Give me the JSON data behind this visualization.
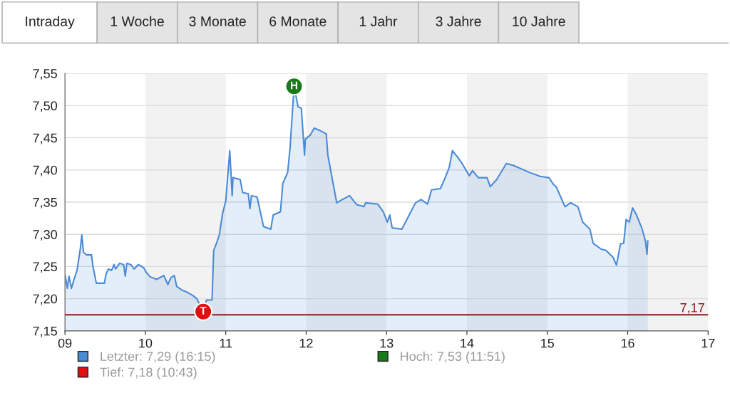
{
  "chart_data": {
    "type": "area",
    "xlim": [
      9,
      17
    ],
    "xticks": [
      {
        "value": 9,
        "label": "09"
      },
      {
        "value": 10,
        "label": "10"
      },
      {
        "value": 11,
        "label": "11"
      },
      {
        "value": 12,
        "label": "12"
      },
      {
        "value": 13,
        "label": "13"
      },
      {
        "value": 14,
        "label": "14"
      },
      {
        "value": 15,
        "label": "15"
      },
      {
        "value": 16,
        "label": "16"
      },
      {
        "value": 17,
        "label": "17"
      }
    ],
    "ylim": [
      7.15,
      7.55
    ],
    "yticks": [
      {
        "value": 7.15,
        "label": "7,15"
      },
      {
        "value": 7.2,
        "label": "7,20"
      },
      {
        "value": 7.25,
        "label": "7,25"
      },
      {
        "value": 7.3,
        "label": "7,30"
      },
      {
        "value": 7.35,
        "label": "7,35"
      },
      {
        "value": 7.4,
        "label": "7,40"
      },
      {
        "value": 7.45,
        "label": "7,45"
      },
      {
        "value": 7.5,
        "label": "7,50"
      },
      {
        "value": 7.55,
        "label": "7,55"
      }
    ],
    "grid": "y",
    "legend": "bottom",
    "series": [
      {
        "name": "Letzter: 7,29 (16:15)",
        "color": "#4a8ad6",
        "x": [
          9.0,
          9.03,
          9.05,
          9.08,
          9.12,
          9.15,
          9.19,
          9.21,
          9.23,
          9.27,
          9.33,
          9.35,
          9.39,
          9.49,
          9.51,
          9.54,
          9.58,
          9.61,
          9.63,
          9.68,
          9.73,
          9.75,
          9.77,
          9.82,
          9.86,
          9.91,
          9.98,
          10.01,
          10.06,
          10.14,
          10.23,
          10.28,
          10.32,
          10.36,
          10.39,
          10.46,
          10.52,
          10.59,
          10.64,
          10.72,
          10.76,
          10.83,
          10.85,
          10.89,
          10.92,
          10.96,
          11.0,
          11.05,
          11.08,
          11.09,
          11.18,
          11.21,
          11.28,
          11.3,
          11.32,
          11.39,
          11.47,
          11.56,
          11.59,
          11.68,
          11.71,
          11.77,
          11.8,
          11.85,
          11.9,
          11.94,
          11.98,
          11.99,
          12.05,
          12.1,
          12.16,
          12.25,
          12.27,
          12.38,
          12.45,
          12.54,
          12.63,
          12.72,
          12.74,
          12.89,
          12.96,
          13.01,
          13.04,
          13.07,
          13.19,
          13.27,
          13.36,
          13.43,
          13.51,
          13.56,
          13.67,
          13.72,
          13.78,
          13.82,
          13.89,
          13.94,
          14.03,
          14.07,
          14.14,
          14.25,
          14.29,
          14.37,
          14.49,
          14.58,
          14.69,
          14.78,
          14.91,
          15.02,
          15.08,
          15.11,
          15.22,
          15.29,
          15.38,
          15.44,
          15.53,
          15.57,
          15.67,
          15.73,
          15.82,
          15.86,
          15.91,
          15.95,
          15.98,
          16.02,
          16.06,
          16.11,
          16.18,
          16.22,
          16.24,
          16.25
        ],
        "values": [
          7.238,
          7.216,
          7.235,
          7.216,
          7.233,
          7.244,
          7.277,
          7.299,
          7.272,
          7.268,
          7.268,
          7.249,
          7.224,
          7.224,
          7.238,
          7.246,
          7.244,
          7.253,
          7.246,
          7.255,
          7.253,
          7.235,
          7.255,
          7.253,
          7.246,
          7.253,
          7.248,
          7.241,
          7.234,
          7.23,
          7.236,
          7.222,
          7.233,
          7.236,
          7.219,
          7.213,
          7.21,
          7.205,
          7.2,
          7.18,
          7.198,
          7.198,
          7.275,
          7.288,
          7.299,
          7.332,
          7.352,
          7.43,
          7.36,
          7.388,
          7.385,
          7.365,
          7.363,
          7.34,
          7.36,
          7.358,
          7.312,
          7.308,
          7.33,
          7.335,
          7.379,
          7.396,
          7.434,
          7.53,
          7.498,
          7.496,
          7.423,
          7.448,
          7.454,
          7.465,
          7.462,
          7.456,
          7.423,
          7.349,
          7.354,
          7.36,
          7.346,
          7.343,
          7.349,
          7.347,
          7.335,
          7.319,
          7.33,
          7.31,
          7.308,
          7.327,
          7.349,
          7.354,
          7.347,
          7.369,
          7.371,
          7.385,
          7.404,
          7.43,
          7.419,
          7.41,
          7.391,
          7.399,
          7.388,
          7.388,
          7.374,
          7.385,
          7.41,
          7.407,
          7.401,
          7.396,
          7.39,
          7.388,
          7.377,
          7.374,
          7.343,
          7.349,
          7.343,
          7.319,
          7.308,
          7.286,
          7.277,
          7.275,
          7.264,
          7.252,
          7.285,
          7.286,
          7.323,
          7.319,
          7.341,
          7.33,
          7.308,
          7.29,
          7.269,
          7.29
        ]
      },
      {
        "name": "Tief: 7,18 (10:43)",
        "color": "#e01010",
        "type": "scatter",
        "marker": "circle",
        "x": [
          10.72
        ],
        "values": [
          7.18
        ]
      },
      {
        "name": "Hoch: 7,53 (11:51)",
        "color": "#1a7a1a",
        "type": "scatter",
        "marker": "circle",
        "x": [
          11.85
        ],
        "values": [
          7.53
        ]
      }
    ],
    "ref_lines": [
      {
        "axis": "y",
        "value": 7.175,
        "label": "7,17",
        "color": "#8b1a1a"
      }
    ],
    "bands": [
      {
        "axis": "x",
        "from": 10,
        "to": 11,
        "color": "#f2f2f2"
      },
      {
        "axis": "x",
        "from": 12,
        "to": 13,
        "color": "#f2f2f2"
      },
      {
        "axis": "x",
        "from": 14,
        "to": 15,
        "color": "#f2f2f2"
      },
      {
        "axis": "x",
        "from": 16,
        "to": 17,
        "color": "#f2f2f2"
      }
    ],
    "annotations": [
      "Intraday",
      "1 Woche",
      "3 Monate",
      "6 Monate",
      "1 Jahr",
      "3 Jahre",
      "10 Jahre",
      {
        "text": "T",
        "x": 10.72,
        "y": 7.18
      },
      {
        "text": "H",
        "x": 11.85,
        "y": 7.53
      }
    ]
  }
}
